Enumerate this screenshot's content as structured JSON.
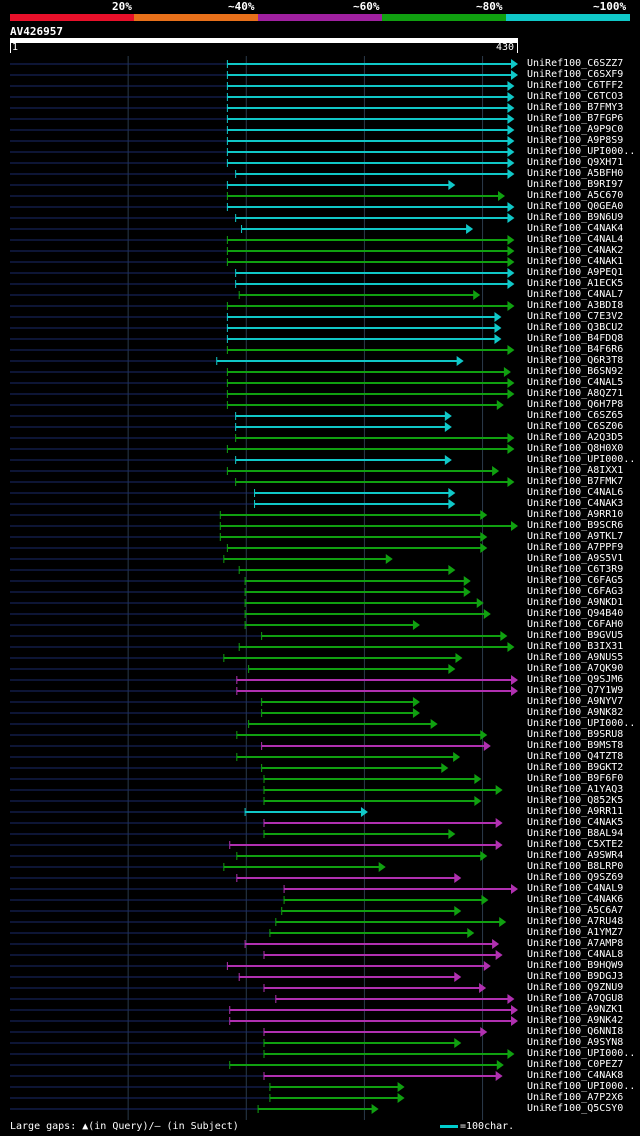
{
  "legend": {
    "labels": [
      "20%",
      "~40%",
      "~60%",
      "~80%",
      "~100%"
    ],
    "colors": [
      "#e8102a",
      "#e8701a",
      "#a020a0",
      "#10a010",
      "#10c8c8"
    ]
  },
  "query": {
    "name": "AV426957",
    "start": "1",
    "end": "430"
  },
  "footer": {
    "gaps": "Large gaps: ▲(in Query)/– (in Subject)",
    "scale": "=100char."
  },
  "chart_data": {
    "type": "alignment-map",
    "query_length": 430,
    "grid_positions": [
      100,
      200,
      300,
      400
    ],
    "hits": [
      {
        "id": "UniRef100_C6SZZ7",
        "start": 184,
        "end": 430,
        "color": "cyan"
      },
      {
        "id": "UniRef100_C6SXF9",
        "start": 184,
        "end": 430,
        "color": "cyan"
      },
      {
        "id": "UniRef100_C6TFF2",
        "start": 184,
        "end": 427,
        "color": "cyan"
      },
      {
        "id": "UniRef100_C6TCO3",
        "start": 184,
        "end": 427,
        "color": "cyan"
      },
      {
        "id": "UniRef100_B7FMY3",
        "start": 184,
        "end": 427,
        "color": "cyan"
      },
      {
        "id": "UniRef100_B7FGP6",
        "start": 184,
        "end": 427,
        "color": "cyan"
      },
      {
        "id": "UniRef100_A9P9C0",
        "start": 184,
        "end": 427,
        "color": "cyan"
      },
      {
        "id": "UniRef100_A9P8S9",
        "start": 184,
        "end": 427,
        "color": "cyan"
      },
      {
        "id": "UniRef100_UPI000..",
        "start": 184,
        "end": 427,
        "color": "cyan"
      },
      {
        "id": "UniRef100_Q9XH71",
        "start": 184,
        "end": 427,
        "color": "cyan"
      },
      {
        "id": "UniRef100_A5BFH0",
        "start": 191,
        "end": 427,
        "color": "cyan"
      },
      {
        "id": "UniRef100_B9RI97",
        "start": 184,
        "end": 377,
        "color": "cyan"
      },
      {
        "id": "UniRef100_A5C670",
        "start": 184,
        "end": 419,
        "color": "green"
      },
      {
        "id": "UniRef100_Q0GEA0",
        "start": 184,
        "end": 427,
        "color": "cyan"
      },
      {
        "id": "UniRef100_B9N6U9",
        "start": 191,
        "end": 427,
        "color": "cyan"
      },
      {
        "id": "UniRef100_C4NAK4",
        "start": 196,
        "end": 392,
        "color": "cyan"
      },
      {
        "id": "UniRef100_C4NAL4",
        "start": 184,
        "end": 427,
        "color": "green"
      },
      {
        "id": "UniRef100_C4NAK2",
        "start": 184,
        "end": 427,
        "color": "green"
      },
      {
        "id": "UniRef100_C4NAK1",
        "start": 184,
        "end": 427,
        "color": "green"
      },
      {
        "id": "UniRef100_A9PEQ1",
        "start": 191,
        "end": 427,
        "color": "cyan"
      },
      {
        "id": "UniRef100_A1ECK5",
        "start": 191,
        "end": 427,
        "color": "cyan"
      },
      {
        "id": "UniRef100_C4NAL7",
        "start": 194,
        "end": 398,
        "color": "green"
      },
      {
        "id": "UniRef100_A3BDI8",
        "start": 184,
        "end": 427,
        "color": "green"
      },
      {
        "id": "UniRef100_C7E3V2",
        "start": 184,
        "end": 416,
        "color": "cyan"
      },
      {
        "id": "UniRef100_Q3BCU2",
        "start": 184,
        "end": 416,
        "color": "cyan"
      },
      {
        "id": "UniRef100_B4FDQ8",
        "start": 184,
        "end": 416,
        "color": "cyan"
      },
      {
        "id": "UniRef100_B4F6R6",
        "start": 184,
        "end": 427,
        "color": "green"
      },
      {
        "id": "UniRef100_Q6R3T8",
        "start": 175,
        "end": 384,
        "color": "cyan"
      },
      {
        "id": "UniRef100_B6SN92",
        "start": 184,
        "end": 424,
        "color": "green"
      },
      {
        "id": "UniRef100_C4NAL5",
        "start": 184,
        "end": 427,
        "color": "green"
      },
      {
        "id": "UniRef100_A8QZ71",
        "start": 184,
        "end": 427,
        "color": "green"
      },
      {
        "id": "UniRef100_Q6H7P8",
        "start": 184,
        "end": 418,
        "color": "green"
      },
      {
        "id": "UniRef100_C6SZ65",
        "start": 191,
        "end": 374,
        "color": "cyan"
      },
      {
        "id": "UniRef100_C6SZ06",
        "start": 191,
        "end": 374,
        "color": "cyan"
      },
      {
        "id": "UniRef100_A2Q3D5",
        "start": 191,
        "end": 427,
        "color": "green"
      },
      {
        "id": "UniRef100_Q8H0X0",
        "start": 184,
        "end": 427,
        "color": "green"
      },
      {
        "id": "UniRef100_UPI000..",
        "start": 191,
        "end": 374,
        "color": "cyan"
      },
      {
        "id": "UniRef100_A8IXX1",
        "start": 184,
        "end": 414,
        "color": "green"
      },
      {
        "id": "UniRef100_B7FMK7",
        "start": 191,
        "end": 427,
        "color": "green"
      },
      {
        "id": "UniRef100_C4NAL6",
        "start": 207,
        "end": 377,
        "color": "cyan"
      },
      {
        "id": "UniRef100_C4NAK3",
        "start": 207,
        "end": 377,
        "color": "cyan"
      },
      {
        "id": "UniRef100_A9RR10",
        "start": 178,
        "end": 404,
        "color": "green"
      },
      {
        "id": "UniRef100_B9SCR6",
        "start": 178,
        "end": 430,
        "color": "green"
      },
      {
        "id": "UniRef100_A9TKL7",
        "start": 178,
        "end": 404,
        "color": "green"
      },
      {
        "id": "UniRef100_A7PPF9",
        "start": 184,
        "end": 404,
        "color": "green"
      },
      {
        "id": "UniRef100_A9S5V1",
        "start": 181,
        "end": 324,
        "color": "green"
      },
      {
        "id": "UniRef100_C6T3R9",
        "start": 194,
        "end": 377,
        "color": "green"
      },
      {
        "id": "UniRef100_C6FAG5",
        "start": 199,
        "end": 390,
        "color": "green"
      },
      {
        "id": "UniRef100_C6FAG3",
        "start": 199,
        "end": 390,
        "color": "green"
      },
      {
        "id": "UniRef100_A9NKD1",
        "start": 199,
        "end": 401,
        "color": "green"
      },
      {
        "id": "UniRef100_Q94B40",
        "start": 199,
        "end": 407,
        "color": "green"
      },
      {
        "id": "UniRef100_C6FAH0",
        "start": 199,
        "end": 347,
        "color": "green"
      },
      {
        "id": "UniRef100_B9GVU5",
        "start": 213,
        "end": 421,
        "color": "green"
      },
      {
        "id": "UniRef100_B3IX31",
        "start": 194,
        "end": 427,
        "color": "green"
      },
      {
        "id": "UniRef100_A9NUS5",
        "start": 181,
        "end": 383,
        "color": "green"
      },
      {
        "id": "UniRef100_A7QK90",
        "start": 202,
        "end": 377,
        "color": "green"
      },
      {
        "id": "UniRef100_Q9SJM6",
        "start": 192,
        "end": 430,
        "color": "magenta"
      },
      {
        "id": "UniRef100_Q7Y1W9",
        "start": 192,
        "end": 430,
        "color": "magenta"
      },
      {
        "id": "UniRef100_A9NYV7",
        "start": 213,
        "end": 347,
        "color": "green"
      },
      {
        "id": "UniRef100_A9NK82",
        "start": 213,
        "end": 347,
        "color": "green"
      },
      {
        "id": "UniRef100_UPI000..",
        "start": 202,
        "end": 362,
        "color": "green"
      },
      {
        "id": "UniRef100_B9SRU8",
        "start": 192,
        "end": 404,
        "color": "green"
      },
      {
        "id": "UniRef100_B9MST8",
        "start": 213,
        "end": 407,
        "color": "magenta"
      },
      {
        "id": "UniRef100_Q4TZT8",
        "start": 192,
        "end": 381,
        "color": "green"
      },
      {
        "id": "UniRef100_B9GKT2",
        "start": 213,
        "end": 371,
        "color": "green"
      },
      {
        "id": "UniRef100_B9F6F0",
        "start": 215,
        "end": 399,
        "color": "green"
      },
      {
        "id": "UniRef100_A1YAQ3",
        "start": 215,
        "end": 417,
        "color": "green"
      },
      {
        "id": "UniRef100_Q852K5",
        "start": 215,
        "end": 399,
        "color": "green"
      },
      {
        "id": "UniRef100_A9RR11",
        "start": 199,
        "end": 303,
        "color": "cyan"
      },
      {
        "id": "UniRef100_C4NAK5",
        "start": 215,
        "end": 417,
        "color": "magenta"
      },
      {
        "id": "UniRef100_B8AL94",
        "start": 215,
        "end": 377,
        "color": "green"
      },
      {
        "id": "UniRef100_C5XTE2",
        "start": 186,
        "end": 417,
        "color": "magenta"
      },
      {
        "id": "UniRef100_A9SWR4",
        "start": 192,
        "end": 404,
        "color": "green"
      },
      {
        "id": "UniRef100_B8LRP0",
        "start": 181,
        "end": 318,
        "color": "green"
      },
      {
        "id": "UniRef100_Q9SZ69",
        "start": 192,
        "end": 382,
        "color": "magenta"
      },
      {
        "id": "UniRef100_C4NAL9",
        "start": 232,
        "end": 430,
        "color": "magenta"
      },
      {
        "id": "UniRef100_C4NAK6",
        "start": 232,
        "end": 405,
        "color": "green"
      },
      {
        "id": "UniRef100_A5C6A7",
        "start": 230,
        "end": 382,
        "color": "green"
      },
      {
        "id": "UniRef100_A7RU48",
        "start": 225,
        "end": 420,
        "color": "green"
      },
      {
        "id": "UniRef100_A1YMZ7",
        "start": 220,
        "end": 393,
        "color": "green"
      },
      {
        "id": "UniRef100_A7AMP8",
        "start": 199,
        "end": 414,
        "color": "magenta"
      },
      {
        "id": "UniRef100_C4NAL8",
        "start": 215,
        "end": 417,
        "color": "magenta"
      },
      {
        "id": "UniRef100_B9HQW9",
        "start": 184,
        "end": 407,
        "color": "magenta"
      },
      {
        "id": "UniRef100_B9DGJ3",
        "start": 194,
        "end": 382,
        "color": "magenta"
      },
      {
        "id": "UniRef100_Q9ZNU9",
        "start": 215,
        "end": 403,
        "color": "magenta"
      },
      {
        "id": "UniRef100_A7QGU8",
        "start": 225,
        "end": 427,
        "color": "magenta"
      },
      {
        "id": "UniRef100_A9NZK1",
        "start": 186,
        "end": 430,
        "color": "magenta"
      },
      {
        "id": "UniRef100_A9NK42",
        "start": 186,
        "end": 430,
        "color": "magenta"
      },
      {
        "id": "UniRef100_Q6NNI8",
        "start": 215,
        "end": 404,
        "color": "magenta"
      },
      {
        "id": "UniRef100_A9SYN8",
        "start": 215,
        "end": 382,
        "color": "green"
      },
      {
        "id": "UniRef100_UPI000..",
        "start": 215,
        "end": 427,
        "color": "green"
      },
      {
        "id": "UniRef100_C0PEZ7",
        "start": 186,
        "end": 418,
        "color": "green"
      },
      {
        "id": "UniRef100_C4NAK8",
        "start": 215,
        "end": 417,
        "color": "magenta"
      },
      {
        "id": "UniRef100_UPI000..",
        "start": 220,
        "end": 334,
        "color": "green"
      },
      {
        "id": "UniRef100_A7P2X6",
        "start": 220,
        "end": 334,
        "color": "green"
      },
      {
        "id": "UniRef100_Q5CSY0",
        "start": 210,
        "end": 312,
        "color": "green"
      }
    ]
  }
}
